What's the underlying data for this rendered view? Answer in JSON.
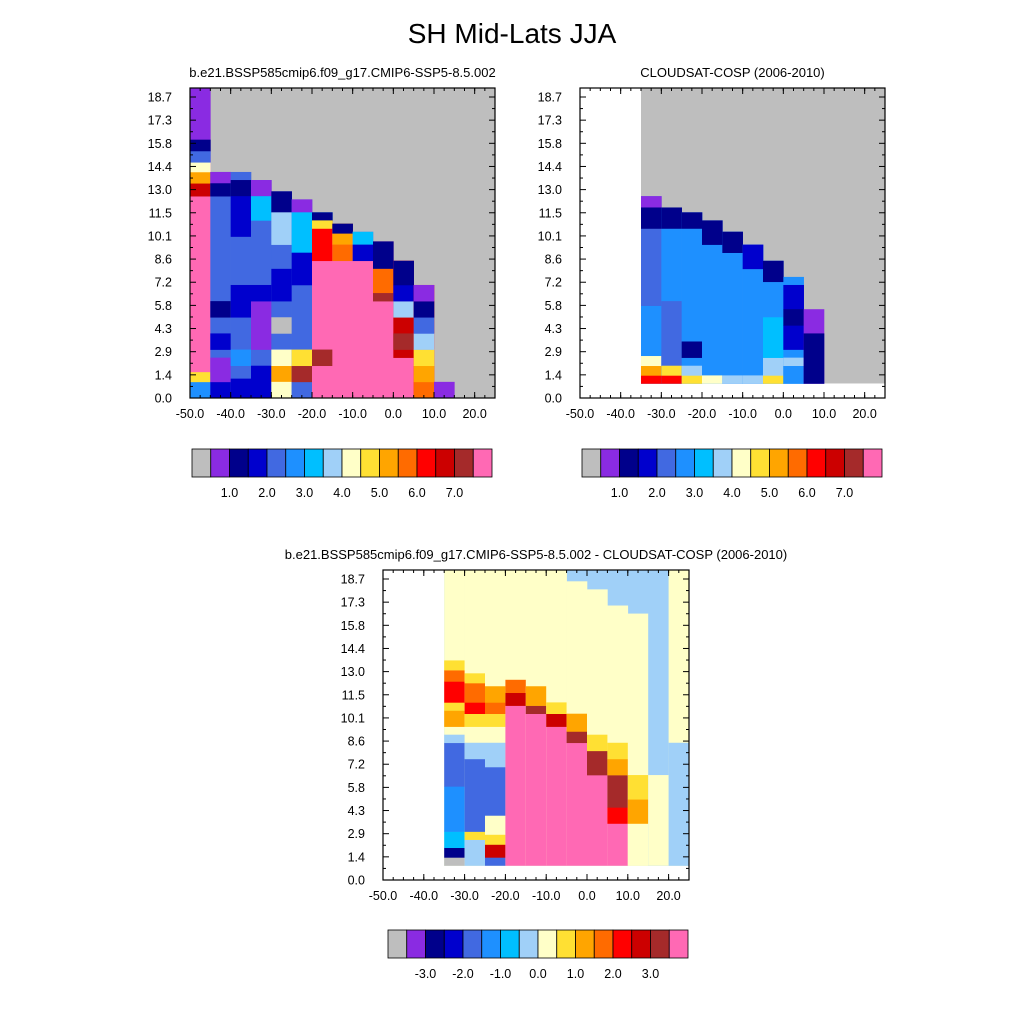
{
  "page": {
    "title": "SH Mid-Lats JJA"
  },
  "palette": [
    "#bebebe",
    "#8a2be2",
    "#00008b",
    "#0000cd",
    "#4169e1",
    "#1e90ff",
    "#00bfff",
    "#a0d0f8",
    "#ffffc8",
    "#ffe033",
    "#ffa500",
    "#ff6b00",
    "#ff0000",
    "#cc0000",
    "#a52a2a",
    "#ff69b4"
  ],
  "chart_data": [
    {
      "type": "heatmap",
      "title": "b.e21.BSSP585cmip6.f09_g17.CMIP6-SSP5-8.5.002",
      "x_ticks": [
        "-50.0",
        "-40.0",
        "-30.0",
        "-20.0",
        "-10.0",
        "0.0",
        "10.0",
        "20.0"
      ],
      "y_ticks": [
        "0.0",
        "1.4",
        "2.9",
        "4.3",
        "5.8",
        "7.2",
        "8.6",
        "10.1",
        "11.5",
        "13.0",
        "14.4",
        "15.8",
        "17.3",
        "18.7"
      ],
      "x_range": [
        -50,
        25
      ],
      "y_range": [
        0,
        19.2
      ],
      "colorbar_labels": [
        "1.0",
        "2.0",
        "3.0",
        "4.0",
        "5.0",
        "6.0",
        "7.0"
      ],
      "colorbar_colors": [
        0,
        1,
        2,
        3,
        4,
        5,
        6,
        7,
        8,
        9,
        10,
        11,
        12,
        13,
        14,
        15
      ],
      "cells": [
        [
          -50,
          -45,
          0,
          19.2,
          1
        ],
        [
          -50,
          -45,
          0,
          15,
          15
        ],
        [
          -50,
          -45,
          0,
          1,
          5
        ],
        [
          -50,
          -45,
          1,
          1.6,
          9
        ],
        [
          -50,
          -45,
          12.5,
          13.3,
          13
        ],
        [
          -50,
          -45,
          13.3,
          14,
          10
        ],
        [
          -50,
          -45,
          14,
          14.6,
          8
        ],
        [
          -50,
          -45,
          14.6,
          15.3,
          4
        ],
        [
          -50,
          -45,
          15.3,
          16,
          2
        ],
        [
          -45,
          -40,
          0,
          14,
          4
        ],
        [
          -45,
          -40,
          0,
          1,
          3
        ],
        [
          -45,
          -40,
          1,
          2.5,
          1
        ],
        [
          -45,
          -40,
          13.3,
          14,
          1
        ],
        [
          -45,
          -40,
          12.5,
          13.3,
          2
        ],
        [
          -45,
          -40,
          5,
          6,
          2
        ],
        [
          -45,
          -40,
          3,
          4,
          3
        ],
        [
          -40,
          -35,
          0,
          14,
          4
        ],
        [
          -40,
          -35,
          12.5,
          13.5,
          2
        ],
        [
          -40,
          -35,
          10,
          12.5,
          3
        ],
        [
          -40,
          -35,
          5,
          7,
          3
        ],
        [
          -40,
          -35,
          2,
          3,
          5
        ],
        [
          -40,
          -35,
          0,
          1.2,
          3
        ],
        [
          -35,
          -30,
          0,
          13.5,
          4
        ],
        [
          -35,
          -30,
          12.5,
          13.5,
          1
        ],
        [
          -35,
          -30,
          11,
          12.5,
          6
        ],
        [
          -35,
          -30,
          3,
          6,
          1
        ],
        [
          -35,
          -30,
          0,
          2,
          3
        ],
        [
          -35,
          -30,
          6,
          7,
          3
        ],
        [
          -30,
          -25,
          0,
          12.8,
          4
        ],
        [
          -30,
          -25,
          11.5,
          12.8,
          2
        ],
        [
          -30,
          -25,
          9.5,
          11.5,
          7
        ],
        [
          -30,
          -25,
          1,
          2,
          10
        ],
        [
          -30,
          -25,
          2,
          3,
          8
        ],
        [
          -30,
          -25,
          4,
          5,
          0
        ],
        [
          -30,
          -25,
          6,
          8,
          3
        ],
        [
          -30,
          -25,
          0,
          1,
          8
        ],
        [
          -25,
          -20,
          0,
          12.3,
          4
        ],
        [
          -25,
          -20,
          11.5,
          12.3,
          1
        ],
        [
          -25,
          -20,
          9,
          11.5,
          6
        ],
        [
          -25,
          -20,
          7,
          9,
          3
        ],
        [
          -25,
          -20,
          0,
          1,
          4
        ],
        [
          -25,
          -20,
          1,
          2,
          14
        ],
        [
          -25,
          -20,
          2,
          3,
          9
        ],
        [
          -20,
          -15,
          0,
          11.5,
          6
        ],
        [
          -20,
          -15,
          0,
          8.5,
          15
        ],
        [
          -20,
          -15,
          8.5,
          11,
          12
        ],
        [
          -20,
          -15,
          11,
          11.5,
          2
        ],
        [
          -20,
          -15,
          10.5,
          11,
          9
        ],
        [
          -20,
          -15,
          2,
          3,
          14
        ],
        [
          -15,
          -10,
          0,
          10.8,
          15
        ],
        [
          -15,
          -10,
          9.5,
          10.8,
          10
        ],
        [
          -15,
          -10,
          8.5,
          9.5,
          11
        ],
        [
          -15,
          -10,
          10.2,
          10.8,
          2
        ],
        [
          -10,
          -5,
          0,
          10.3,
          15
        ],
        [
          -10,
          -5,
          9.5,
          10.3,
          6
        ],
        [
          -10,
          -5,
          8.5,
          9.5,
          3
        ],
        [
          -5,
          0,
          0,
          9.7,
          15
        ],
        [
          -5,
          0,
          8,
          9.7,
          2
        ],
        [
          -5,
          0,
          6.5,
          8,
          11
        ],
        [
          -5,
          0,
          6,
          6.5,
          14
        ],
        [
          0,
          5,
          0,
          8.5,
          15
        ],
        [
          0,
          5,
          2.5,
          8.5,
          13
        ],
        [
          0,
          5,
          5,
          6,
          7
        ],
        [
          0,
          5,
          6,
          7,
          3
        ],
        [
          0,
          5,
          7,
          8.5,
          2
        ],
        [
          0,
          5,
          3,
          4,
          14
        ],
        [
          5,
          10,
          0,
          7,
          12
        ],
        [
          5,
          10,
          0,
          1,
          11
        ],
        [
          5,
          10,
          1,
          2,
          10
        ],
        [
          5,
          10,
          2,
          3,
          9
        ],
        [
          5,
          10,
          3,
          4,
          7
        ],
        [
          5,
          10,
          4,
          5,
          4
        ],
        [
          5,
          10,
          5,
          6,
          2
        ],
        [
          5,
          10,
          6,
          7,
          1
        ],
        [
          10,
          15,
          0,
          1,
          1
        ]
      ]
    },
    {
      "type": "heatmap",
      "title": "CLOUDSAT-COSP (2006-2010)",
      "x_ticks": [
        "-50.0",
        "-40.0",
        "-30.0",
        "-20.0",
        "-10.0",
        "0.0",
        "10.0",
        "20.0"
      ],
      "y_ticks": [
        "0.0",
        "1.4",
        "2.9",
        "4.3",
        "5.8",
        "7.2",
        "8.6",
        "10.1",
        "11.5",
        "13.0",
        "14.4",
        "15.8",
        "17.3",
        "18.7"
      ],
      "x_range": [
        -50,
        25
      ],
      "y_range": [
        0,
        19.2
      ],
      "colorbar_labels": [
        "1.0",
        "2.0",
        "3.0",
        "4.0",
        "5.0",
        "6.0",
        "7.0"
      ],
      "colorbar_colors": [
        0,
        1,
        2,
        3,
        4,
        5,
        6,
        7,
        8,
        9,
        10,
        11,
        12,
        13,
        14,
        15
      ],
      "cells": [
        [
          -35,
          -30,
          0.9,
          12.5,
          4
        ],
        [
          -35,
          -30,
          11.8,
          12.5,
          1
        ],
        [
          -35,
          -30,
          10.5,
          11.8,
          2
        ],
        [
          -35,
          -30,
          1.4,
          5.7,
          5
        ],
        [
          -35,
          -30,
          0.9,
          1.4,
          12
        ],
        [
          -35,
          -30,
          1.4,
          2,
          10
        ],
        [
          -35,
          -30,
          2,
          2.6,
          8
        ],
        [
          -30,
          -25,
          0.9,
          11.8,
          5
        ],
        [
          -30,
          -25,
          10.5,
          11.8,
          2
        ],
        [
          -30,
          -25,
          1.4,
          6,
          4
        ],
        [
          -30,
          -25,
          0.9,
          1.4,
          12
        ],
        [
          -30,
          -25,
          1.4,
          2,
          9
        ],
        [
          -25,
          -20,
          0.9,
          11.5,
          5
        ],
        [
          -25,
          -20,
          10.5,
          11.5,
          2
        ],
        [
          -25,
          -20,
          2.5,
          3.5,
          2
        ],
        [
          -25,
          -20,
          0.9,
          1.4,
          9
        ],
        [
          -25,
          -20,
          1.4,
          2,
          7
        ],
        [
          -20,
          -15,
          0.9,
          11,
          5
        ],
        [
          -20,
          -15,
          9.5,
          11,
          2
        ],
        [
          -20,
          -15,
          0.9,
          1.4,
          8
        ],
        [
          -15,
          -10,
          0.9,
          10.3,
          5
        ],
        [
          -15,
          -10,
          9,
          10.3,
          2
        ],
        [
          -15,
          -10,
          0.9,
          1.4,
          7
        ],
        [
          -10,
          -5,
          0.9,
          9.5,
          5
        ],
        [
          -10,
          -5,
          8,
          9.5,
          3
        ],
        [
          -10,
          -5,
          0.9,
          1.4,
          7
        ],
        [
          -5,
          0,
          0.9,
          8.5,
          5
        ],
        [
          -5,
          0,
          7.2,
          8.5,
          2
        ],
        [
          -5,
          0,
          0.9,
          1.4,
          9
        ],
        [
          -5,
          0,
          1.4,
          2.5,
          7
        ],
        [
          -5,
          0,
          2.5,
          5,
          6
        ],
        [
          0,
          5,
          0.9,
          7.5,
          5
        ],
        [
          0,
          5,
          5.5,
          7,
          3
        ],
        [
          0,
          5,
          0.9,
          2,
          5
        ],
        [
          0,
          5,
          2,
          2.5,
          7
        ],
        [
          0,
          5,
          3,
          4.5,
          3
        ],
        [
          0,
          5,
          4.5,
          5.5,
          2
        ],
        [
          5,
          10,
          0.9,
          5.5,
          1
        ],
        [
          5,
          10,
          0.9,
          4,
          2
        ]
      ]
    },
    {
      "type": "heatmap",
      "title": "b.e21.BSSP585cmip6.f09_g17.CMIP6-SSP5-8.5.002 - CLOUDSAT-COSP (2006-2010)",
      "x_ticks": [
        "-50.0",
        "-40.0",
        "-30.0",
        "-20.0",
        "-10.0",
        "0.0",
        "10.0",
        "20.0"
      ],
      "y_ticks": [
        "0.0",
        "1.4",
        "2.9",
        "4.3",
        "5.8",
        "7.2",
        "8.6",
        "10.1",
        "11.5",
        "13.0",
        "14.4",
        "15.8",
        "17.3",
        "18.7"
      ],
      "x_range": [
        -50,
        25
      ],
      "y_range": [
        0,
        19.2
      ],
      "colorbar_labels": [
        "-3.0",
        "-2.0",
        "-1.0",
        "0.0",
        "1.0",
        "2.0",
        "3.0"
      ],
      "colorbar_colors": [
        0,
        1,
        2,
        3,
        4,
        5,
        6,
        7,
        8,
        9,
        10,
        11,
        12,
        13,
        14,
        15
      ],
      "cells": [
        [
          -35,
          25,
          0.9,
          19.2,
          7
        ],
        [
          -35,
          -30,
          0.9,
          19.2,
          8
        ],
        [
          -35,
          -30,
          0.9,
          1.4,
          0
        ],
        [
          -35,
          -30,
          1.4,
          2,
          2
        ],
        [
          -35,
          -30,
          2,
          3,
          6
        ],
        [
          -35,
          -30,
          3,
          5.8,
          5
        ],
        [
          -35,
          -30,
          5.8,
          8.5,
          4
        ],
        [
          -35,
          -30,
          8.5,
          9,
          7
        ],
        [
          -35,
          -30,
          9.5,
          10.5,
          10
        ],
        [
          -35,
          -30,
          10.5,
          11,
          9
        ],
        [
          -35,
          -30,
          11,
          12.3,
          12
        ],
        [
          -35,
          -30,
          12.3,
          13,
          11
        ],
        [
          -35,
          -30,
          13,
          13.6,
          9
        ],
        [
          -30,
          -25,
          0.9,
          19.2,
          8
        ],
        [
          -30,
          -25,
          0.9,
          2.5,
          7
        ],
        [
          -30,
          -25,
          2.5,
          3,
          9
        ],
        [
          -30,
          -25,
          3,
          7.5,
          4
        ],
        [
          -30,
          -25,
          7.5,
          8.5,
          7
        ],
        [
          -30,
          -25,
          9.5,
          10.3,
          9
        ],
        [
          -30,
          -25,
          10.3,
          11,
          12
        ],
        [
          -30,
          -25,
          11,
          12.2,
          11
        ],
        [
          -30,
          -25,
          12.2,
          12.8,
          9
        ],
        [
          -25,
          -20,
          0.9,
          19.2,
          8
        ],
        [
          -25,
          -20,
          0.9,
          1.4,
          4
        ],
        [
          -25,
          -20,
          1.4,
          2.2,
          13
        ],
        [
          -25,
          -20,
          2.2,
          2.8,
          9
        ],
        [
          -25,
          -20,
          3,
          4,
          8
        ],
        [
          -25,
          -20,
          4,
          7,
          4
        ],
        [
          -25,
          -20,
          7,
          8.5,
          7
        ],
        [
          -25,
          -20,
          9.5,
          10.3,
          9
        ],
        [
          -25,
          -20,
          10.3,
          11,
          11
        ],
        [
          -25,
          -20,
          11,
          12,
          10
        ],
        [
          -20,
          -15,
          0.9,
          19.2,
          8
        ],
        [
          -20,
          -15,
          0.9,
          10.8,
          15
        ],
        [
          -20,
          -15,
          10.8,
          11.6,
          13
        ],
        [
          -20,
          -15,
          11.6,
          12.4,
          11
        ],
        [
          -15,
          -10,
          0.9,
          19.2,
          8
        ],
        [
          -15,
          -10,
          0.9,
          10.3,
          15
        ],
        [
          -15,
          -10,
          10.3,
          10.8,
          14
        ],
        [
          -15,
          -10,
          10.8,
          12,
          10
        ],
        [
          -10,
          -5,
          0.9,
          19.2,
          8
        ],
        [
          -10,
          -5,
          0.9,
          9.5,
          15
        ],
        [
          -10,
          -5,
          9.5,
          10.3,
          13
        ],
        [
          -10,
          -5,
          10.3,
          11,
          9
        ],
        [
          -5,
          0,
          0.9,
          18.5,
          8
        ],
        [
          -5,
          0,
          0.9,
          8.5,
          15
        ],
        [
          -5,
          0,
          8.5,
          9.2,
          14
        ],
        [
          -5,
          0,
          9.2,
          10.3,
          10
        ],
        [
          0,
          5,
          0.9,
          18,
          8
        ],
        [
          0,
          5,
          0.9,
          6.5,
          15
        ],
        [
          0,
          5,
          6.5,
          8,
          14
        ],
        [
          0,
          5,
          8,
          9,
          9
        ],
        [
          5,
          10,
          0.9,
          17,
          8
        ],
        [
          5,
          10,
          0.9,
          3.5,
          15
        ],
        [
          5,
          10,
          3.5,
          4.5,
          12
        ],
        [
          5,
          10,
          4.5,
          6.5,
          14
        ],
        [
          5,
          10,
          6.5,
          7.5,
          10
        ],
        [
          5,
          10,
          7.5,
          8.5,
          9
        ],
        [
          10,
          15,
          0.9,
          16.5,
          8
        ],
        [
          10,
          15,
          0.9,
          3.5,
          8
        ],
        [
          10,
          15,
          3.5,
          5,
          10
        ],
        [
          10,
          15,
          5,
          6.5,
          9
        ],
        [
          15,
          20,
          0.9,
          16.5,
          7
        ],
        [
          15,
          20,
          0.9,
          6.5,
          8
        ],
        [
          20,
          25,
          0.9,
          19.2,
          8
        ],
        [
          20,
          25,
          0.9,
          8.5,
          7
        ]
      ]
    }
  ]
}
